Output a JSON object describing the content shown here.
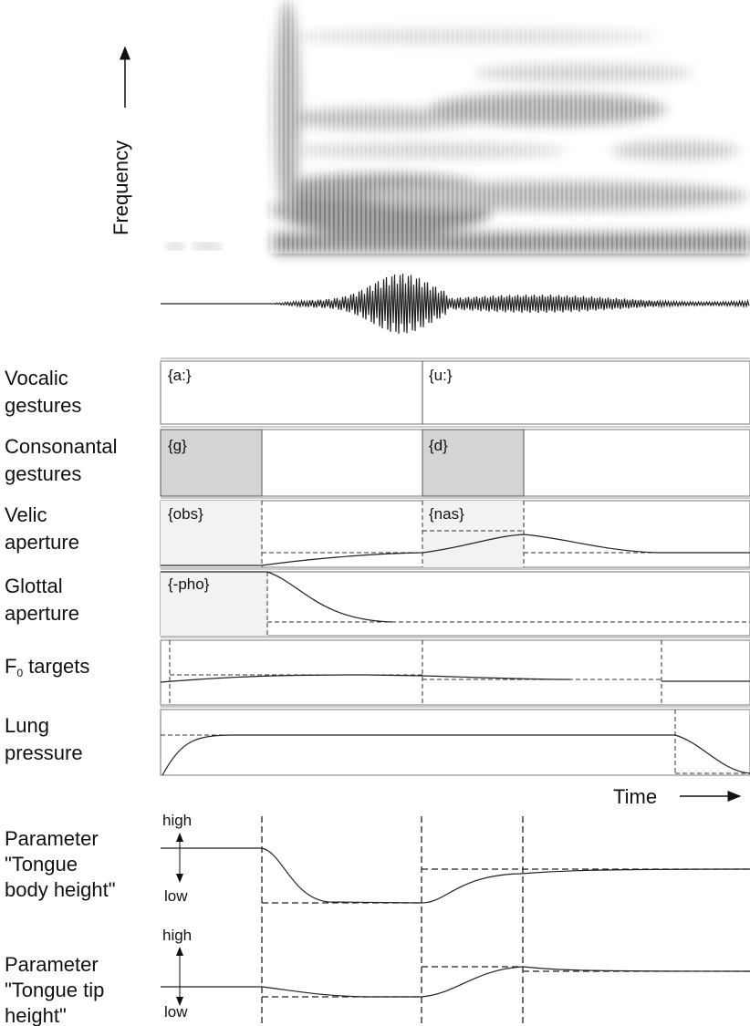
{
  "spectrogram": {
    "axis_label": "Frequency"
  },
  "tiers": [
    {
      "label_lines": [
        "Vocalic",
        "gestures"
      ],
      "segments": [
        "{a:}",
        "{u:}"
      ]
    },
    {
      "label_lines": [
        "Consonantal",
        "gestures"
      ],
      "segments": [
        "{g}",
        "{d}"
      ]
    },
    {
      "label_lines": [
        "Velic",
        "aperture"
      ],
      "segments": [
        "{obs}",
        "{nas}"
      ]
    },
    {
      "label_lines": [
        "Glottal",
        "aperture"
      ],
      "segments": [
        "{-pho}"
      ]
    },
    {
      "label": {
        "base": "F",
        "subscript": "0",
        "rest": "targets"
      }
    },
    {
      "label_lines": [
        "Lung",
        "pressure"
      ]
    }
  ],
  "time_label": "Time",
  "parameters": [
    {
      "label_lines": [
        "Parameter",
        "\"Tongue",
        "body height\""
      ],
      "high": "high",
      "low": "low"
    },
    {
      "label_lines": [
        "Parameter",
        "\"Tongue tip",
        "height\""
      ],
      "high": "high",
      "low": "low"
    }
  ]
}
